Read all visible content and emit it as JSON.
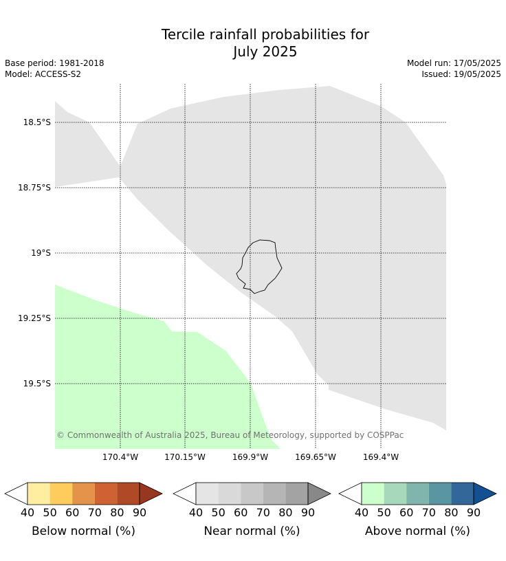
{
  "title": {
    "line1": "Tercile rainfall probabilities for",
    "line2": "July 2025"
  },
  "meta": {
    "base_period": "Base period: 1981-2018",
    "model": "Model: ACCESS-S2",
    "model_run": "Model run: 17/05/2025",
    "issued": "Issued: 19/05/2025"
  },
  "map": {
    "lat_labels": [
      "18.5°S",
      "18.75°S",
      "19°S",
      "19.25°S",
      "19.5°S"
    ],
    "lon_labels": [
      "170.4°W",
      "170.15°W",
      "169.9°W",
      "169.65°W",
      "169.4°W"
    ],
    "copyright": "© Commonwealth of Australia 2025, Bureau of Meteorology, supported by COSPPac",
    "colors": {
      "near_normal_region": "#e5e5e5",
      "above_normal_region": "#ccffcc",
      "ocean": "#ffffff"
    }
  },
  "legends": [
    {
      "label": "Below normal (%)",
      "ticks": [
        "40",
        "50",
        "60",
        "70",
        "80",
        "90"
      ],
      "colors": [
        "#ffffff",
        "#ffeda0",
        "#fecc5c",
        "#e3944a",
        "#ce6232",
        "#b04a26",
        "#973720"
      ]
    },
    {
      "label": "Near normal (%)",
      "ticks": [
        "40",
        "50",
        "60",
        "70",
        "80",
        "90"
      ],
      "colors": [
        "#ffffff",
        "#e5e5e5",
        "#d9d9d9",
        "#c8c8c8",
        "#b5b5b5",
        "#a3a3a3",
        "#888888"
      ]
    },
    {
      "label": "Above normal (%)",
      "ticks": [
        "40",
        "50",
        "60",
        "70",
        "80",
        "90"
      ],
      "colors": [
        "#ffffff",
        "#ccffcc",
        "#a8d8bb",
        "#80b5ad",
        "#5a96a2",
        "#336699",
        "#135090"
      ]
    }
  ]
}
